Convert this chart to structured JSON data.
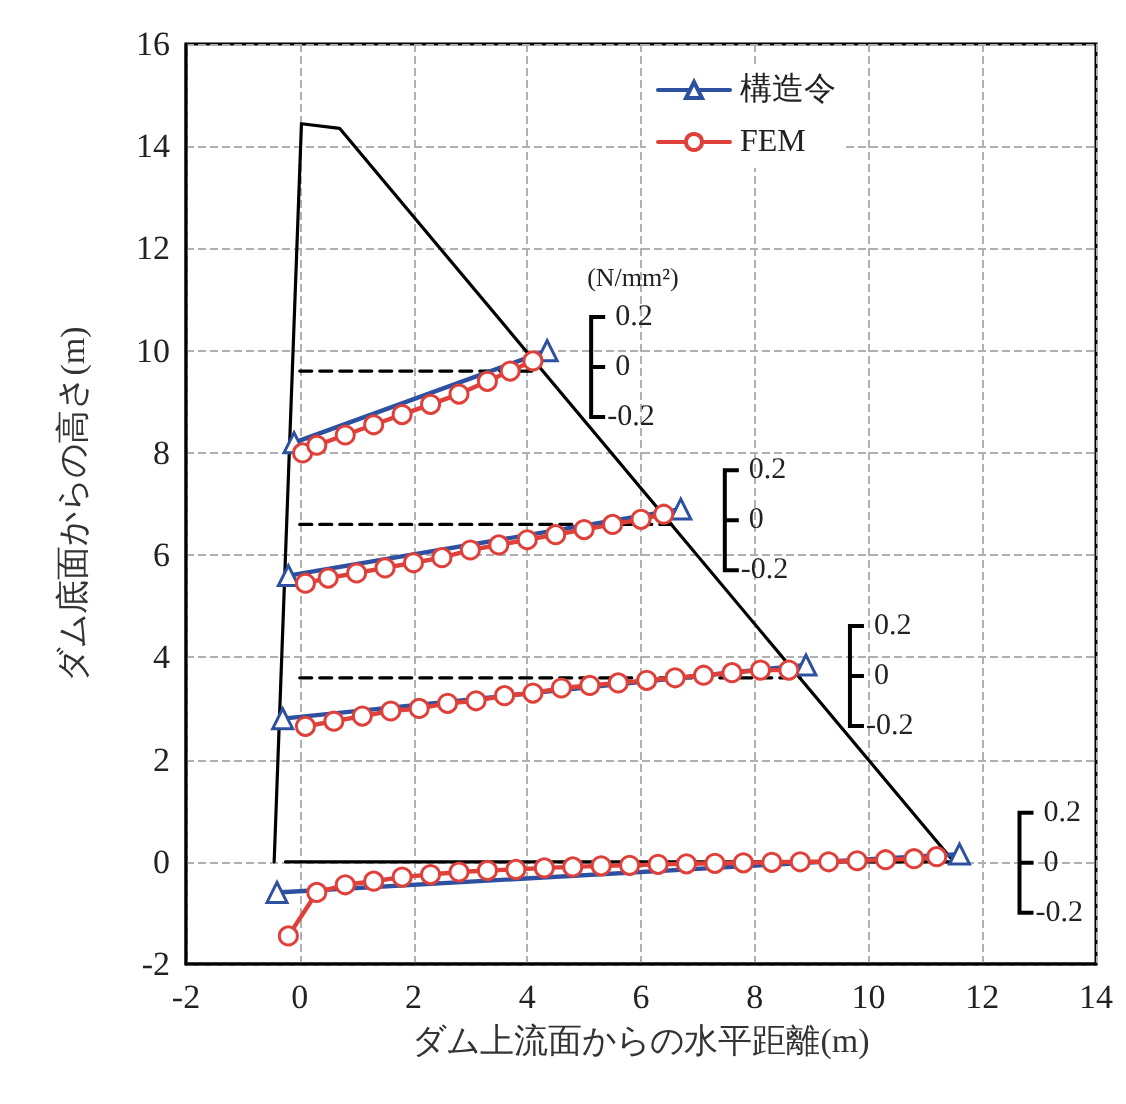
{
  "chart_data": {
    "type": "line",
    "xlabel": "ダム上流面からの水平距離(m)",
    "ylabel": "ダム底面からの高さ(m)",
    "xlim": [
      -2,
      14
    ],
    "xticks": [
      -2,
      0,
      2,
      4,
      6,
      8,
      10,
      12,
      14
    ],
    "ylim": [
      -2,
      16
    ],
    "yticks": [
      -2,
      0,
      2,
      4,
      6,
      8,
      10,
      12,
      14,
      16
    ],
    "grid": true,
    "legend": "top right",
    "series": [
      {
        "color": "#000000",
        "marker": "none",
        "line_style": "solid",
        "x": [
          -0.25,
          11.5,
          0.7,
          0.03,
          -0.45
        ],
        "values": [
          0,
          0,
          14.35,
          14.44,
          0
        ]
      },
      {
        "color": "#000000",
        "marker": "none",
        "line_style": "dashed",
        "x": [
          0,
          4.2,
          null,
          0,
          6.6,
          null,
          0,
          8.8
        ],
        "values": [
          9.6,
          9.6,
          null,
          6.6,
          6.6,
          null,
          3.6,
          3.6
        ]
      },
      {
        "name": "構造令",
        "color": "#2e50a0",
        "marker": "triangle",
        "line_style": "solid",
        "x": [
          -0.1,
          4.35,
          null,
          -0.2,
          6.7,
          null,
          -0.3,
          8.9,
          null,
          -0.4,
          11.6
        ],
        "values": [
          8.2,
          10.0,
          null,
          5.6,
          6.9,
          null,
          2.8,
          3.85,
          null,
          -0.6,
          0.15
        ]
      },
      {
        "name": "FEM",
        "color": "#e0403a",
        "marker": "circle",
        "line_style": "solid",
        "x": [
          0.05,
          0.3,
          0.8,
          1.3,
          1.8,
          2.3,
          2.8,
          3.3,
          3.7,
          4.1,
          null,
          0.1,
          0.5,
          1.0,
          1.5,
          2.0,
          2.5,
          3.0,
          3.5,
          4.0,
          4.5,
          5.0,
          5.5,
          6.0,
          6.4,
          null,
          0.1,
          0.6,
          1.1,
          1.6,
          2.1,
          2.6,
          3.1,
          3.6,
          4.1,
          4.6,
          5.1,
          5.6,
          6.1,
          6.6,
          7.1,
          7.6,
          8.1,
          8.6,
          null,
          -0.2,
          0.3,
          0.8,
          1.3,
          1.8,
          2.3,
          2.8,
          3.3,
          3.8,
          4.3,
          4.8,
          5.3,
          5.8,
          6.3,
          6.8,
          7.3,
          7.8,
          8.3,
          8.8,
          9.3,
          9.8,
          10.3,
          10.8,
          11.2
        ],
        "values": [
          8.0,
          8.15,
          8.35,
          8.55,
          8.75,
          8.95,
          9.15,
          9.4,
          9.6,
          9.8,
          null,
          5.45,
          5.55,
          5.65,
          5.75,
          5.85,
          5.95,
          6.1,
          6.2,
          6.3,
          6.4,
          6.5,
          6.6,
          6.7,
          6.8,
          null,
          2.65,
          2.75,
          2.85,
          2.95,
          3.0,
          3.1,
          3.15,
          3.25,
          3.3,
          3.4,
          3.45,
          3.5,
          3.55,
          3.6,
          3.65,
          3.7,
          3.75,
          3.75,
          null,
          -1.45,
          -0.6,
          -0.45,
          -0.38,
          -0.3,
          -0.25,
          -0.2,
          -0.17,
          -0.15,
          -0.12,
          -0.1,
          -0.08,
          -0.07,
          -0.05,
          -0.04,
          -0.03,
          -0.02,
          -0.01,
          0.0,
          0.0,
          0.02,
          0.04,
          0.06,
          0.1
        ]
      }
    ],
    "annotations": [
      "(N/mm²)",
      "0.2",
      "0",
      "-0.2",
      "0.2",
      "0",
      "-0.2",
      "0.2",
      "0",
      "-0.2",
      "0.2",
      "0",
      "-0.2"
    ]
  }
}
